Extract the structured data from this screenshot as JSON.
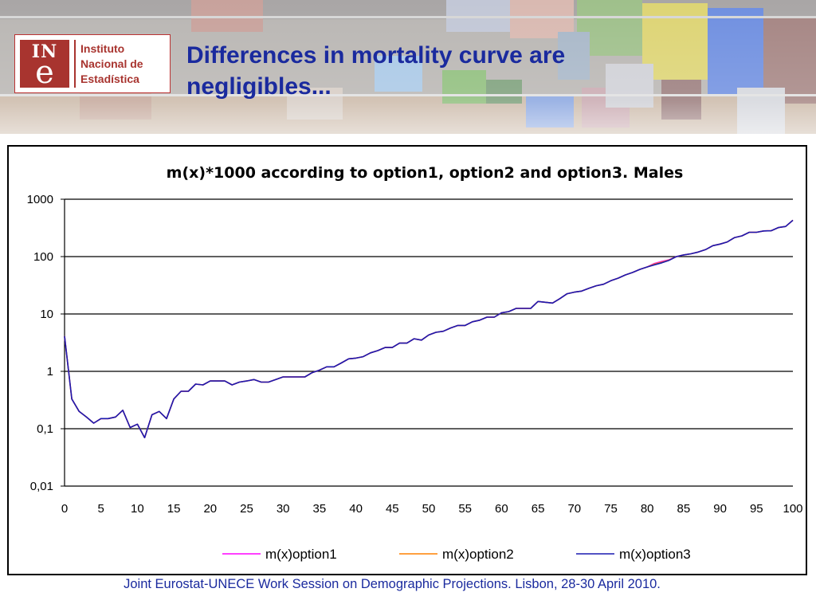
{
  "logo": {
    "mark_top": "IN",
    "mark_bottom": "e",
    "line1": "Instituto",
    "line2": "Nacional de",
    "line3": "Estadística"
  },
  "slide_title": "Differences in mortality curve are negligibles...",
  "footer": "Joint Eurostat-UNECE Work Session on Demographic Projections. Lisbon, 28-30 April 2010.",
  "colors": {
    "title": "#1a2a9e",
    "option1": "#ff00ff",
    "option2": "#ff8000",
    "option3": "#1a1ab0"
  },
  "chart_data": {
    "type": "line",
    "title": "m(x)*1000 according to option1, option2 and option3. Males",
    "xlabel": "",
    "ylabel": "",
    "yscale": "log",
    "ylim": [
      0.01,
      1000
    ],
    "xlim": [
      0,
      100
    ],
    "grid": true,
    "legend": "bottom",
    "y_tick_labels": [
      "1000",
      "100",
      "10",
      "1",
      "0,1",
      "0,01"
    ],
    "x_tick_labels": [
      "0",
      "5",
      "10",
      "15",
      "20",
      "25",
      "30",
      "35",
      "40",
      "45",
      "50",
      "55",
      "60",
      "65",
      "70",
      "75",
      "80",
      "85",
      "90",
      "95",
      "100"
    ],
    "x": [
      0,
      1,
      2,
      3,
      4,
      5,
      6,
      7,
      8,
      9,
      10,
      11,
      12,
      13,
      14,
      15,
      16,
      17,
      18,
      19,
      20,
      21,
      22,
      23,
      24,
      25,
      26,
      27,
      28,
      29,
      30,
      31,
      32,
      33,
      34,
      35,
      36,
      37,
      38,
      39,
      40,
      41,
      42,
      43,
      44,
      45,
      46,
      47,
      48,
      49,
      50,
      51,
      52,
      53,
      54,
      55,
      56,
      57,
      58,
      59,
      60,
      61,
      62,
      63,
      64,
      65,
      66,
      67,
      68,
      69,
      70,
      71,
      72,
      73,
      74,
      75,
      76,
      77,
      78,
      79,
      80,
      81,
      82,
      83,
      84,
      85,
      86,
      87,
      88,
      89,
      90,
      91,
      92,
      93,
      94,
      95,
      96,
      97,
      98,
      99,
      100
    ],
    "series": [
      {
        "name": "m(x)option1",
        "values": [
          4.1,
          0.33,
          0.2,
          0.16,
          0.125,
          0.15,
          0.15,
          0.16,
          0.21,
          0.105,
          0.12,
          0.07,
          0.175,
          0.2,
          0.15,
          0.33,
          0.45,
          0.45,
          0.6,
          0.58,
          0.68,
          0.68,
          0.68,
          0.58,
          0.65,
          0.68,
          0.72,
          0.65,
          0.65,
          0.72,
          0.8,
          0.8,
          0.8,
          0.8,
          0.95,
          1.05,
          1.2,
          1.2,
          1.4,
          1.65,
          1.7,
          1.8,
          2.1,
          2.3,
          2.6,
          2.6,
          3.1,
          3.1,
          3.7,
          3.5,
          4.3,
          4.8,
          5.0,
          5.7,
          6.3,
          6.3,
          7.3,
          7.8,
          8.8,
          8.8,
          10.5,
          11.0,
          12.5,
          12.5,
          12.5,
          16.5,
          16.0,
          15.5,
          18.5,
          22.5,
          24,
          25,
          28,
          31,
          33,
          38,
          42,
          48,
          53,
          60,
          66,
          76,
          82,
          88,
          100,
          107,
          112,
          120,
          132,
          155,
          165,
          180,
          215,
          230,
          265,
          265,
          280,
          282,
          320,
          335,
          430
        ]
      },
      {
        "name": "m(x)option2",
        "values": [
          4.1,
          0.33,
          0.2,
          0.16,
          0.125,
          0.15,
          0.15,
          0.16,
          0.21,
          0.105,
          0.12,
          0.07,
          0.175,
          0.2,
          0.15,
          0.33,
          0.45,
          0.45,
          0.6,
          0.58,
          0.68,
          0.68,
          0.68,
          0.58,
          0.65,
          0.68,
          0.72,
          0.65,
          0.65,
          0.72,
          0.8,
          0.8,
          0.8,
          0.8,
          0.95,
          1.05,
          1.2,
          1.2,
          1.4,
          1.65,
          1.7,
          1.8,
          2.1,
          2.3,
          2.6,
          2.6,
          3.1,
          3.1,
          3.7,
          3.5,
          4.3,
          4.8,
          5.0,
          5.7,
          6.3,
          6.3,
          7.3,
          7.8,
          8.8,
          8.8,
          10.5,
          11.0,
          12.5,
          12.5,
          12.5,
          16.5,
          16.0,
          15.5,
          18.5,
          22.5,
          24,
          25,
          28,
          31,
          33,
          38,
          42,
          48,
          53,
          60,
          66,
          74,
          80,
          87,
          100,
          107,
          112,
          120,
          132,
          155,
          165,
          180,
          215,
          230,
          265,
          265,
          280,
          282,
          320,
          335,
          430
        ]
      },
      {
        "name": "m(x)option3",
        "values": [
          4.1,
          0.33,
          0.2,
          0.16,
          0.125,
          0.15,
          0.15,
          0.16,
          0.21,
          0.105,
          0.12,
          0.07,
          0.175,
          0.2,
          0.15,
          0.33,
          0.45,
          0.45,
          0.6,
          0.58,
          0.68,
          0.68,
          0.68,
          0.58,
          0.65,
          0.68,
          0.72,
          0.65,
          0.65,
          0.72,
          0.8,
          0.8,
          0.8,
          0.8,
          0.95,
          1.05,
          1.2,
          1.2,
          1.4,
          1.65,
          1.7,
          1.8,
          2.1,
          2.3,
          2.6,
          2.6,
          3.1,
          3.1,
          3.7,
          3.5,
          4.3,
          4.8,
          5.0,
          5.7,
          6.3,
          6.3,
          7.3,
          7.8,
          8.8,
          8.8,
          10.5,
          11.0,
          12.5,
          12.5,
          12.5,
          16.5,
          16.0,
          15.5,
          18.5,
          22.5,
          24,
          25,
          28,
          31,
          33,
          38,
          42,
          48,
          53,
          60,
          66,
          72,
          78,
          86,
          100,
          107,
          112,
          120,
          132,
          155,
          165,
          180,
          215,
          230,
          265,
          265,
          280,
          282,
          320,
          335,
          430
        ]
      }
    ]
  }
}
